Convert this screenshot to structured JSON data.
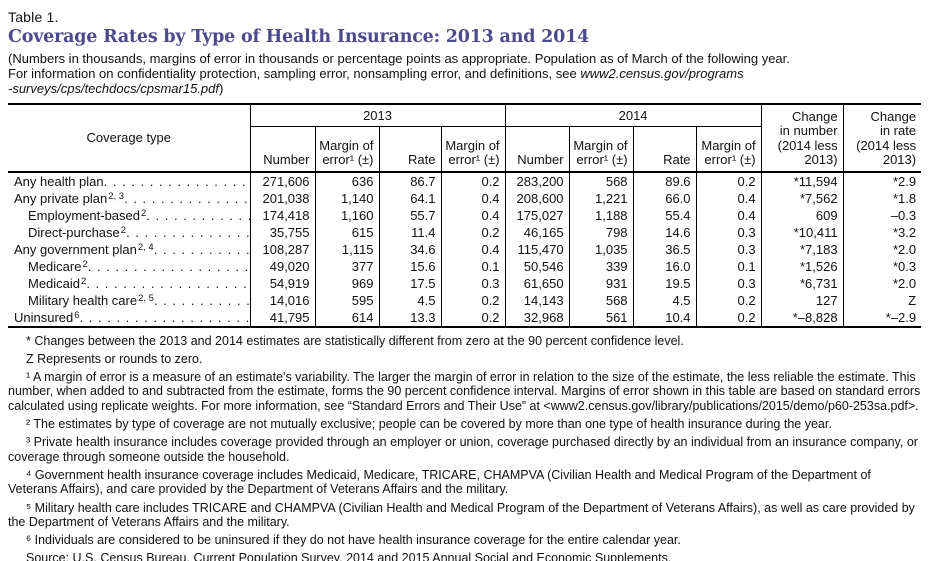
{
  "colors": {
    "title_accent": "#4c4a8c"
  },
  "header": {
    "table_label": "Table 1.",
    "title": "Coverage Rates by Type of Health Insurance: 2013 and 2014",
    "intro_line1": "(Numbers in thousands, margins of error in thousands or percentage points as appropriate. Population as of March of the following year.",
    "intro_line2_text": "For information on confidentiality protection, sampling error, nonsampling error, and definitions, see ",
    "intro_line2_italic": "www2.census.gov/programs",
    "intro_line3_italic": "-surveys/cps/techdocs/cpsmar15.pdf",
    "intro_line3_close": ")"
  },
  "table": {
    "coverage_type_label": "Coverage type",
    "year_2013": "2013",
    "year_2014": "2014",
    "measure_headers": [
      [
        "Number"
      ],
      [
        "Margin of",
        "error¹ (±)"
      ],
      [
        "Rate"
      ],
      [
        "Margin of",
        "error¹ (±)"
      ]
    ],
    "change_number_lines": [
      "Change",
      "in number",
      "(2014 less",
      "2013)"
    ],
    "change_rate_lines": [
      "Change",
      "in rate",
      "(2014 less",
      "2013)"
    ],
    "rows": [
      {
        "label": "Any health plan",
        "sup": "",
        "indent": false,
        "values": [
          "271,606",
          "636",
          "86.7",
          "0.2",
          "283,200",
          "568",
          "89.6",
          "0.2",
          "*11,594",
          "*2.9"
        ]
      },
      {
        "label": "Any private plan",
        "sup": "2, 3",
        "indent": false,
        "values": [
          "201,038",
          "1,140",
          "64.1",
          "0.4",
          "208,600",
          "1,221",
          "66.0",
          "0.4",
          "*7,562",
          "*1.8"
        ]
      },
      {
        "label": "Employment-based",
        "sup": "2",
        "indent": true,
        "values": [
          "174,418",
          "1,160",
          "55.7",
          "0.4",
          "175,027",
          "1,188",
          "55.4",
          "0.4",
          "609",
          "–0.3"
        ]
      },
      {
        "label": "Direct-purchase",
        "sup": "2",
        "indent": true,
        "values": [
          "35,755",
          "615",
          "11.4",
          "0.2",
          "46,165",
          "798",
          "14.6",
          "0.3",
          "*10,411",
          "*3.2"
        ]
      },
      {
        "label": "Any government plan",
        "sup": "2, 4",
        "indent": false,
        "values": [
          "108,287",
          "1,115",
          "34.6",
          "0.4",
          "115,470",
          "1,035",
          "36.5",
          "0.3",
          "*7,183",
          "*2.0"
        ]
      },
      {
        "label": "Medicare",
        "sup": "2",
        "indent": true,
        "values": [
          "49,020",
          "377",
          "15.6",
          "0.1",
          "50,546",
          "339",
          "16.0",
          "0.1",
          "*1,526",
          "*0.3"
        ]
      },
      {
        "label": "Medicaid",
        "sup": "2",
        "indent": true,
        "values": [
          "54,919",
          "969",
          "17.5",
          "0.3",
          "61,650",
          "931",
          "19.5",
          "0.3",
          "*6,731",
          "*2.0"
        ]
      },
      {
        "label": "Military health care",
        "sup": "2, 5",
        "indent": true,
        "values": [
          "14,016",
          "595",
          "4.5",
          "0.2",
          "14,143",
          "568",
          "4.5",
          "0.2",
          "127",
          "Z"
        ]
      },
      {
        "label": "Uninsured",
        "sup": "6",
        "indent": false,
        "values": [
          "41,795",
          "614",
          "13.3",
          "0.2",
          "32,968",
          "561",
          "10.4",
          "0.2",
          "*–8,828",
          "*–2.9"
        ]
      }
    ]
  },
  "footnotes": [
    "* Changes between the 2013 and 2014 estimates are statistically different from zero at the 90 percent confidence level.",
    "Z Represents or rounds to zero.",
    "¹ A margin of error is a measure of an estimate's variability. The larger the margin of error in relation to the size of the estimate, the less reliable the estimate. This number, when added to and subtracted from the estimate, forms the 90 percent confidence interval. Margins of error shown in this table are based on standard errors calculated using replicate weights. For more information, see “Standard Errors and Their Use” at <www2.census.gov/library/publications/2015/demo/p60-253sa.pdf>.",
    "² The estimates by type of coverage are not mutually exclusive; people can be covered by more than one type of health insurance during the year.",
    "³ Private health insurance includes coverage provided through an employer or union, coverage purchased directly by an individual from an insurance company, or coverage through someone outside the household.",
    "⁴ Government health insurance coverage includes Medicaid, Medicare, TRICARE, CHAMPVA (Civilian Health and Medical Program of the Department of Veterans Affairs), and care provided by the Department of Veterans Affairs and the military.",
    "⁵ Military health care includes TRICARE and CHAMPVA (Civilian Health and Medical Program of the Department of Veterans Affairs), as well as care provided by the Department of Veterans Affairs and the military.",
    "⁶ Individuals are considered to be uninsured if they do not have health insurance coverage for the entire calendar year.",
    "Source: U.S. Census Bureau, Current Population Survey, 2014 and 2015 Annual Social and Economic Supplements."
  ]
}
